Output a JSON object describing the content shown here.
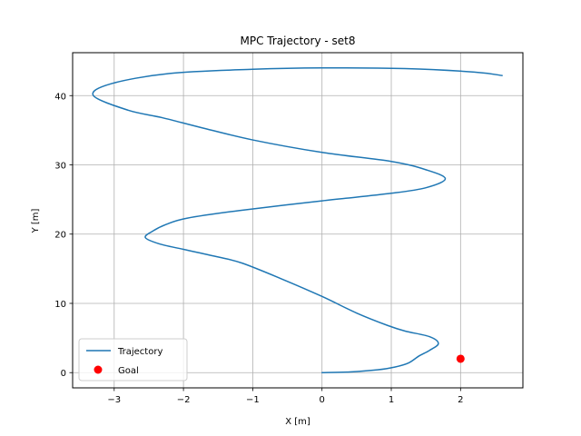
{
  "chart_data": {
    "type": "line",
    "title": "MPC Trajectory - set8",
    "xlabel": "X [m]",
    "ylabel": "Y [m]",
    "xlim": [
      -3.6,
      2.9
    ],
    "ylim": [
      -2.2,
      46.2
    ],
    "xticks": [
      -3,
      -2,
      -1,
      0,
      1,
      2
    ],
    "xtick_labels": [
      "−3",
      "−2",
      "−1",
      "0",
      "1",
      "2"
    ],
    "yticks": [
      0,
      10,
      20,
      30,
      40
    ],
    "ytick_labels": [
      "0",
      "10",
      "20",
      "30",
      "40"
    ],
    "grid": true,
    "legend_position": "lower-left",
    "series": [
      {
        "name": "Trajectory",
        "color": "#1f77b4",
        "points": [
          [
            0.0,
            0.0
          ],
          [
            0.4,
            0.1
          ],
          [
            0.8,
            0.4
          ],
          [
            1.05,
            0.8
          ],
          [
            1.25,
            1.4
          ],
          [
            1.4,
            2.4
          ],
          [
            1.55,
            3.2
          ],
          [
            1.68,
            4.2
          ],
          [
            1.55,
            5.2
          ],
          [
            1.2,
            6.0
          ],
          [
            0.95,
            6.8
          ],
          [
            0.5,
            8.6
          ],
          [
            0.0,
            11.0
          ],
          [
            -0.6,
            13.6
          ],
          [
            -1.15,
            15.8
          ],
          [
            -1.5,
            16.7
          ],
          [
            -2.0,
            17.8
          ],
          [
            -2.35,
            18.6
          ],
          [
            -2.55,
            19.5
          ],
          [
            -2.45,
            20.4
          ],
          [
            -2.25,
            21.4
          ],
          [
            -1.95,
            22.3
          ],
          [
            -1.2,
            23.4
          ],
          [
            0.0,
            24.8
          ],
          [
            1.0,
            25.9
          ],
          [
            1.5,
            26.7
          ],
          [
            1.78,
            28.0
          ],
          [
            1.5,
            29.3
          ],
          [
            1.0,
            30.5
          ],
          [
            0.0,
            31.8
          ],
          [
            -1.0,
            33.6
          ],
          [
            -1.75,
            35.4
          ],
          [
            -2.3,
            36.8
          ],
          [
            -2.8,
            37.9
          ],
          [
            -3.3,
            40.0
          ],
          [
            -3.05,
            41.7
          ],
          [
            -2.2,
            43.2
          ],
          [
            -1.0,
            43.8
          ],
          [
            0.0,
            44.0
          ],
          [
            1.2,
            43.9
          ],
          [
            2.2,
            43.4
          ],
          [
            2.6,
            42.9
          ]
        ]
      },
      {
        "name": "Goal",
        "color": "#ff0000",
        "marker": "circle",
        "points": [
          [
            2.0,
            2.0
          ]
        ]
      }
    ]
  }
}
